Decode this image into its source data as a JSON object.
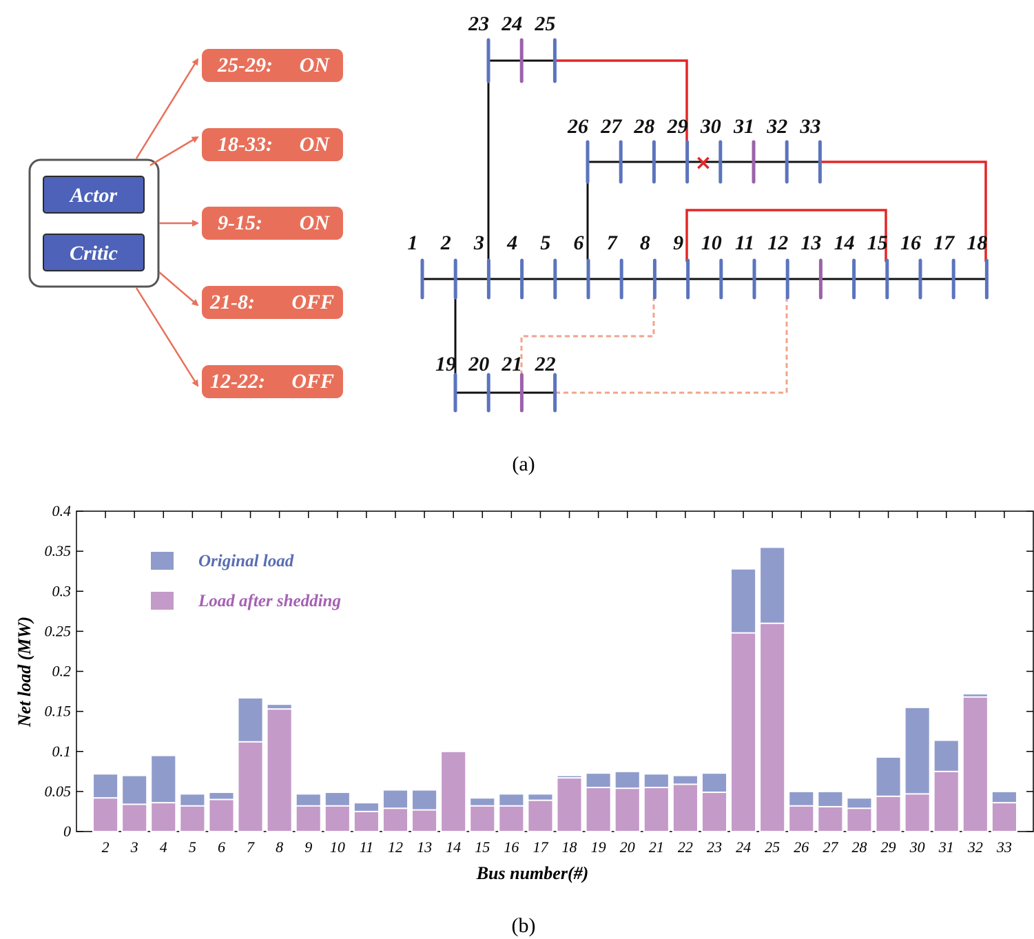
{
  "topology": {
    "caption": "(a)",
    "controller": {
      "actor_label": "Actor",
      "critic_label": "Critic"
    },
    "actions": [
      {
        "pair": "25-29:",
        "state": "ON"
      },
      {
        "pair": "18-33:",
        "state": "ON"
      },
      {
        "pair": "9-15:",
        "state": "ON"
      },
      {
        "pair": "21-8:",
        "state": "OFF"
      },
      {
        "pair": "12-22:",
        "state": "OFF"
      }
    ],
    "main_feeder_buses": [
      "1",
      "2",
      "3",
      "4",
      "5",
      "6",
      "7",
      "8",
      "9",
      "10",
      "11",
      "12",
      "13",
      "14",
      "15",
      "16",
      "17",
      "18"
    ],
    "lateral_19_22_buses": [
      "19",
      "20",
      "21",
      "22"
    ],
    "lateral_23_25_buses": [
      "23",
      "24",
      "25"
    ],
    "lateral_26_33_buses": [
      "26",
      "27",
      "28",
      "29",
      "30",
      "31",
      "32",
      "33"
    ],
    "purple_buses": [
      "13",
      "21",
      "24",
      "31"
    ],
    "fault_marker": "×",
    "colors": {
      "bus": "#5b74bd",
      "bus_special": "#9b62a9",
      "line": "#111111",
      "tie_on": "#e32626",
      "tie_off": "#f0a48c",
      "action_box": "#e8705a",
      "controller_btn": "#4d62b8",
      "fault": "#e32626"
    }
  },
  "chart_data": {
    "type": "bar",
    "caption": "(b)",
    "xlabel": "Bus number(#)",
    "ylabel": "Net load (MW)",
    "ylim": [
      0,
      0.4
    ],
    "yticks": [
      "0",
      "0.05",
      "0.1",
      "0.15",
      "0.2",
      "0.25",
      "0.3",
      "0.35",
      "0.4"
    ],
    "categories": [
      "2",
      "3",
      "4",
      "5",
      "6",
      "7",
      "8",
      "9",
      "10",
      "11",
      "12",
      "13",
      "14",
      "15",
      "16",
      "17",
      "18",
      "19",
      "20",
      "21",
      "22",
      "23",
      "24",
      "25",
      "26",
      "27",
      "28",
      "29",
      "30",
      "31",
      "32",
      "33"
    ],
    "series": [
      {
        "name": "Original load",
        "color": "#8f9ccb",
        "legend_text_color": "#5a6db2",
        "values": [
          0.072,
          0.07,
          0.095,
          0.047,
          0.049,
          0.167,
          0.159,
          0.047,
          0.049,
          0.036,
          0.052,
          0.052,
          0.1,
          0.042,
          0.047,
          0.047,
          0.07,
          0.073,
          0.075,
          0.072,
          0.07,
          0.073,
          0.328,
          0.355,
          0.05,
          0.05,
          0.042,
          0.093,
          0.155,
          0.114,
          0.172,
          0.05
        ]
      },
      {
        "name": "Load after shedding",
        "color": "#c49ac8",
        "legend_text_color": "#a560b3",
        "values": [
          0.042,
          0.034,
          0.036,
          0.032,
          0.04,
          0.112,
          0.153,
          0.032,
          0.032,
          0.025,
          0.029,
          0.027,
          0.1,
          0.032,
          0.032,
          0.039,
          0.067,
          0.055,
          0.054,
          0.055,
          0.059,
          0.049,
          0.248,
          0.26,
          0.032,
          0.031,
          0.029,
          0.044,
          0.047,
          0.075,
          0.168,
          0.036
        ]
      }
    ],
    "legend_position": "top-left"
  }
}
